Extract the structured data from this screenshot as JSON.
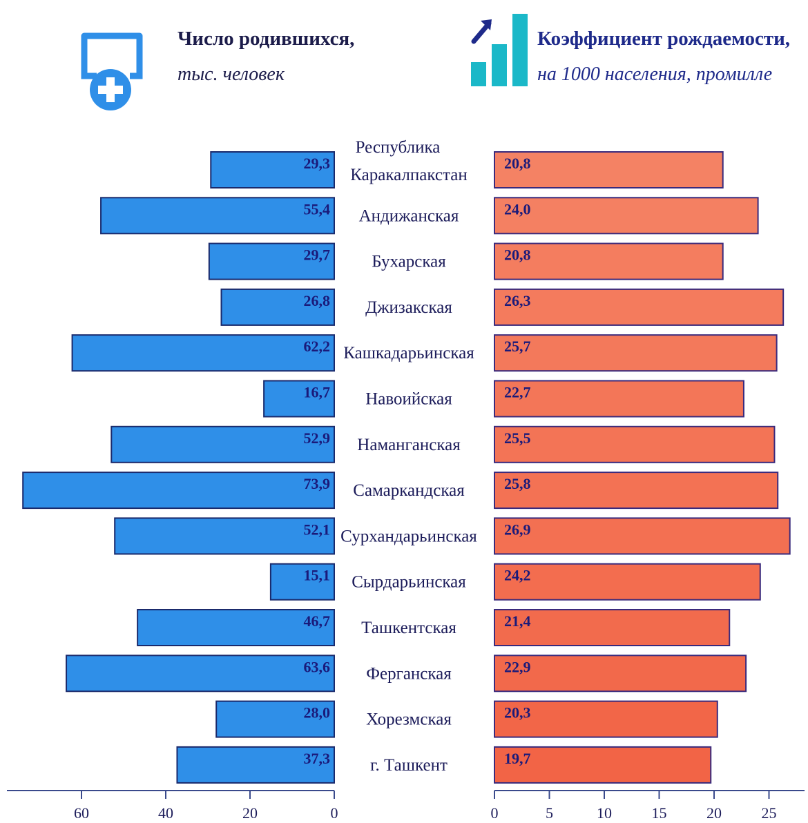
{
  "legend": {
    "left_title": "Число родившихся,",
    "left_subtitle": "тыс. человек",
    "right_title": "Коэффициент рождаемости,",
    "right_subtitle": "на 1000 населения, промилле",
    "left_icon": "newborn-display-icon",
    "right_icon": "bar-chart-growth-icon"
  },
  "colors": {
    "left_bar": "#2f8fe8",
    "right_bar": "#f4775a",
    "axis": "#3a4a8c",
    "icon_blue": "#2f8fe8",
    "icon_teal": "#1bb8c8"
  },
  "chart_data": [
    {
      "type": "bar",
      "orientation": "horizontal",
      "direction": "right-to-left",
      "categories": [
        "Республика Каракалпакстан",
        "Андижанская",
        "Бухарская",
        "Джизакская",
        "Кашкадарьинская",
        "Навоийская",
        "Наманганская",
        "Самаркандская",
        "Сурхандарьинская",
        "Сырдарьинская",
        "Ташкентская",
        "Ферганская",
        "Хорезмская",
        "г. Ташкент"
      ],
      "values": [
        29.3,
        55.4,
        29.7,
        26.8,
        62.2,
        16.7,
        52.9,
        73.9,
        52.1,
        15.1,
        46.7,
        63.6,
        28.0,
        37.3
      ],
      "labels": [
        "29,3",
        "55,4",
        "29,7",
        "26,8",
        "62,2",
        "16,7",
        "52,9",
        "73,9",
        "52,1",
        "15,1",
        "46,7",
        "63,6",
        "28,0",
        "37,3"
      ],
      "xlim": [
        0,
        77
      ],
      "ticks": [
        0,
        20,
        40,
        60
      ],
      "tick_labels": [
        "0",
        "20",
        "40",
        "60"
      ]
    },
    {
      "type": "bar",
      "orientation": "horizontal",
      "direction": "left-to-right",
      "categories": [
        "Республика Каракалпакстан",
        "Андижанская",
        "Бухарская",
        "Джизакская",
        "Кашкадарьинская",
        "Навоийская",
        "Наманганская",
        "Самаркандская",
        "Сурхандарьинская",
        "Сырдарьинская",
        "Ташкентская",
        "Ферганская",
        "Хорезмская",
        "г. Ташкент"
      ],
      "values": [
        20.8,
        24.0,
        20.8,
        26.3,
        25.7,
        22.7,
        25.5,
        25.8,
        26.9,
        24.2,
        21.4,
        22.9,
        20.3,
        19.7
      ],
      "labels": [
        "20,8",
        "24,0",
        "20,8",
        "26,3",
        "25,7",
        "22,7",
        "25,5",
        "25,8",
        "26,9",
        "24,2",
        "21,4",
        "22,9",
        "20,3",
        "19,7"
      ],
      "xlim": [
        0,
        29
      ],
      "ticks": [
        0,
        5,
        10,
        15,
        20,
        25
      ],
      "tick_labels": [
        "0",
        "5",
        "10",
        "15",
        "20",
        "25"
      ]
    }
  ],
  "category_lines": [
    [
      "Республика",
      "Каракалпакстан"
    ],
    [
      "Андижанская"
    ],
    [
      "Бухарская"
    ],
    [
      "Джизакская"
    ],
    [
      "Кашкадарьинская"
    ],
    [
      "Навоийская"
    ],
    [
      "Наманганская"
    ],
    [
      "Самаркандская"
    ],
    [
      "Сурхандарьинская"
    ],
    [
      "Сырдарьинская"
    ],
    [
      "Ташкентская"
    ],
    [
      "Ферганская"
    ],
    [
      "Хорезмская"
    ],
    [
      "г. Ташкент"
    ]
  ]
}
